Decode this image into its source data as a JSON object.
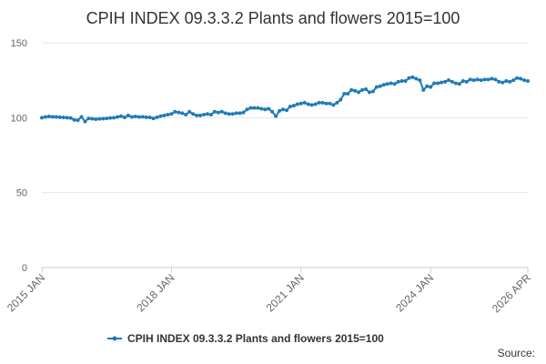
{
  "chart_data": {
    "type": "line",
    "title": "CPIH INDEX 09.3.3.2 Plants and flowers 2015=100",
    "source": "Source:",
    "categories": [
      "2015 JAN",
      null,
      null,
      null,
      null,
      null,
      null,
      null,
      null,
      null,
      null,
      null,
      null,
      null,
      null,
      null,
      null,
      null,
      null,
      null,
      null,
      null,
      null,
      null,
      null,
      null,
      null,
      null,
      null,
      null,
      null,
      null,
      null,
      null,
      null,
      null,
      "2018 JAN",
      null,
      null,
      null,
      null,
      null,
      null,
      null,
      null,
      null,
      null,
      null,
      null,
      null,
      null,
      null,
      null,
      null,
      null,
      null,
      null,
      null,
      null,
      null,
      null,
      null,
      null,
      null,
      null,
      null,
      null,
      null,
      null,
      null,
      null,
      null,
      "2021 JAN",
      null,
      null,
      null,
      null,
      null,
      null,
      null,
      null,
      null,
      null,
      null,
      null,
      null,
      null,
      null,
      null,
      null,
      null,
      null,
      null,
      null,
      null,
      null,
      null,
      null,
      null,
      null,
      null,
      null,
      null,
      null,
      null,
      null,
      null,
      null,
      "2024 JAN",
      null,
      null,
      null,
      null,
      null,
      null,
      null,
      null,
      null,
      null,
      null,
      null,
      null,
      null,
      null,
      null,
      null,
      null,
      null,
      null,
      null,
      null,
      null,
      null,
      null,
      null,
      "2026 APR"
    ],
    "series": [
      {
        "name": "CPIH INDEX 09.3.3.2 Plants and flowers 2015=100",
        "color": "#1f7bb6",
        "values": [
          100,
          100.5,
          100.8,
          100.6,
          100.5,
          100.3,
          100.2,
          100,
          99.8,
          98.5,
          98.3,
          100.5,
          97.5,
          99.5,
          99.3,
          99,
          99.2,
          99.4,
          99.5,
          99.8,
          100,
          100.5,
          101,
          100.2,
          101.5,
          100.5,
          100.8,
          100.5,
          100.6,
          100.3,
          100.2,
          99.5,
          100.3,
          101,
          101.5,
          102,
          102.5,
          104,
          103.5,
          103,
          102,
          104,
          102.5,
          101.5,
          101.5,
          102,
          102.5,
          102,
          104,
          103.5,
          104,
          103,
          102.5,
          102.5,
          103,
          103,
          103.5,
          105.5,
          106.5,
          106.5,
          106.5,
          106,
          105.5,
          106,
          104,
          101,
          104.5,
          105.5,
          105,
          107.5,
          108,
          109,
          109.5,
          110,
          109,
          108.5,
          109,
          110,
          110,
          109.5,
          109.5,
          108.5,
          110,
          112,
          116,
          116,
          118.5,
          118,
          117,
          118.5,
          119,
          117,
          117.5,
          120.5,
          121,
          122,
          122.5,
          123,
          122.5,
          124,
          124.5,
          124.5,
          126.5,
          127,
          126,
          125,
          118.5,
          121,
          120.5,
          123,
          123,
          123.5,
          124,
          125,
          124,
          123,
          122.5,
          124.5,
          124,
          125.5,
          125,
          125.5,
          125,
          125.5,
          125.5,
          126,
          125.5,
          124,
          123.5,
          124.5,
          124,
          125,
          126.5,
          126,
          125,
          124.5
        ]
      }
    ],
    "ylim": [
      0,
      150
    ],
    "yticks": [
      0,
      50,
      100,
      150
    ],
    "grid": true
  }
}
